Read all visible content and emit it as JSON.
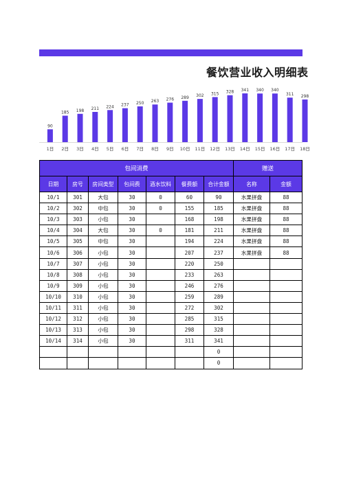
{
  "page": {
    "title": "餐饮营业收入明细表"
  },
  "chart_data": {
    "type": "bar",
    "categories": [
      "1日",
      "2日",
      "3日",
      "4日",
      "5日",
      "6日",
      "7日",
      "8日",
      "9日",
      "10日",
      "11日",
      "12日",
      "13日",
      "14日",
      "15日",
      "16日",
      "17日",
      "18日"
    ],
    "values": [
      90,
      185,
      198,
      211,
      224,
      237,
      250,
      263,
      276,
      289,
      302,
      315,
      328,
      341,
      340,
      340,
      311,
      298
    ],
    "ylim": [
      0,
      360
    ],
    "grid": false,
    "legend": "none",
    "bar_color": "#5b39e6"
  },
  "table": {
    "group_headers": [
      "包间消费",
      "赠送"
    ],
    "columns": [
      "日期",
      "房号",
      "房间类型",
      "包间费",
      "酒水饮料",
      "餐费额",
      "合计金额",
      "名称",
      "金额"
    ],
    "rows": [
      [
        "10/1",
        "301",
        "大包",
        "30",
        "0",
        "60",
        "90",
        "水果拼盘",
        "88"
      ],
      [
        "10/2",
        "302",
        "中包",
        "30",
        "0",
        "155",
        "185",
        "水果拼盘",
        "88"
      ],
      [
        "10/3",
        "303",
        "小包",
        "30",
        "",
        "168",
        "198",
        "水果拼盘",
        "88"
      ],
      [
        "10/4",
        "304",
        "大包",
        "30",
        "0",
        "181",
        "211",
        "水果拼盘",
        "88"
      ],
      [
        "10/5",
        "305",
        "中包",
        "30",
        "",
        "194",
        "224",
        "水果拼盘",
        "88"
      ],
      [
        "10/6",
        "306",
        "小包",
        "30",
        "",
        "207",
        "237",
        "水果拼盘",
        "88"
      ],
      [
        "10/7",
        "307",
        "小包",
        "30",
        "",
        "220",
        "250",
        "",
        ""
      ],
      [
        "10/8",
        "308",
        "小包",
        "30",
        "",
        "233",
        "263",
        "",
        ""
      ],
      [
        "10/9",
        "309",
        "小包",
        "30",
        "",
        "246",
        "276",
        "",
        ""
      ],
      [
        "10/10",
        "310",
        "小包",
        "30",
        "",
        "259",
        "289",
        "",
        ""
      ],
      [
        "10/11",
        "311",
        "小包",
        "30",
        "",
        "272",
        "302",
        "",
        ""
      ],
      [
        "10/12",
        "312",
        "小包",
        "30",
        "",
        "285",
        "315",
        "",
        ""
      ],
      [
        "10/13",
        "313",
        "小包",
        "30",
        "",
        "298",
        "328",
        "",
        ""
      ],
      [
        "10/14",
        "314",
        "小包",
        "30",
        "",
        "311",
        "341",
        "",
        ""
      ],
      [
        "",
        "",
        "",
        "",
        "",
        "",
        "0",
        "",
        ""
      ],
      [
        "",
        "",
        "",
        "",
        "",
        "",
        "0",
        "",
        ""
      ]
    ]
  }
}
